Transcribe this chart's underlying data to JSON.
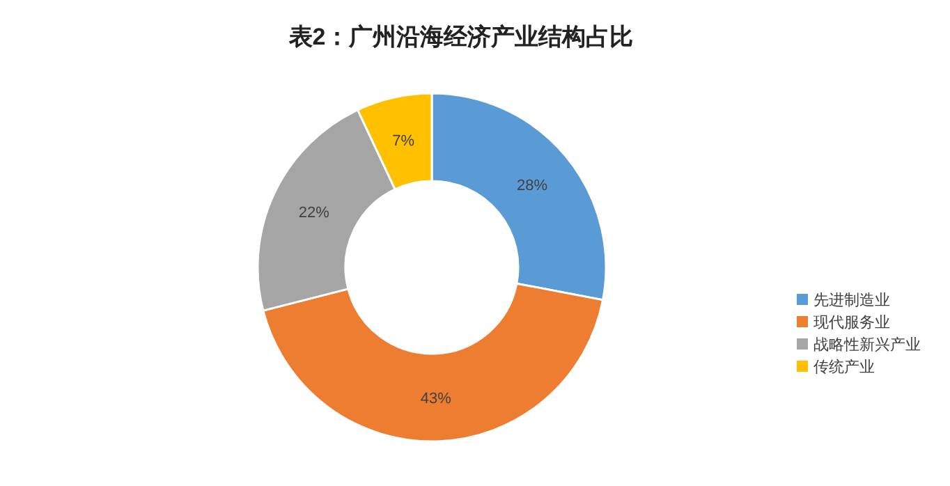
{
  "chart_data": {
    "type": "donut",
    "title": "表2：广州沿海经济产业结构占比",
    "categories": [
      "先进制造业",
      "现代服务业",
      "战略性新兴产业",
      "传统产业"
    ],
    "values": [
      28,
      43,
      22,
      7
    ],
    "value_labels": [
      "28%",
      "43%",
      "22%",
      "7%"
    ],
    "colors": [
      "#5b9bd5",
      "#ed7d31",
      "#a5a5a5",
      "#ffc000"
    ],
    "legend": "right"
  }
}
